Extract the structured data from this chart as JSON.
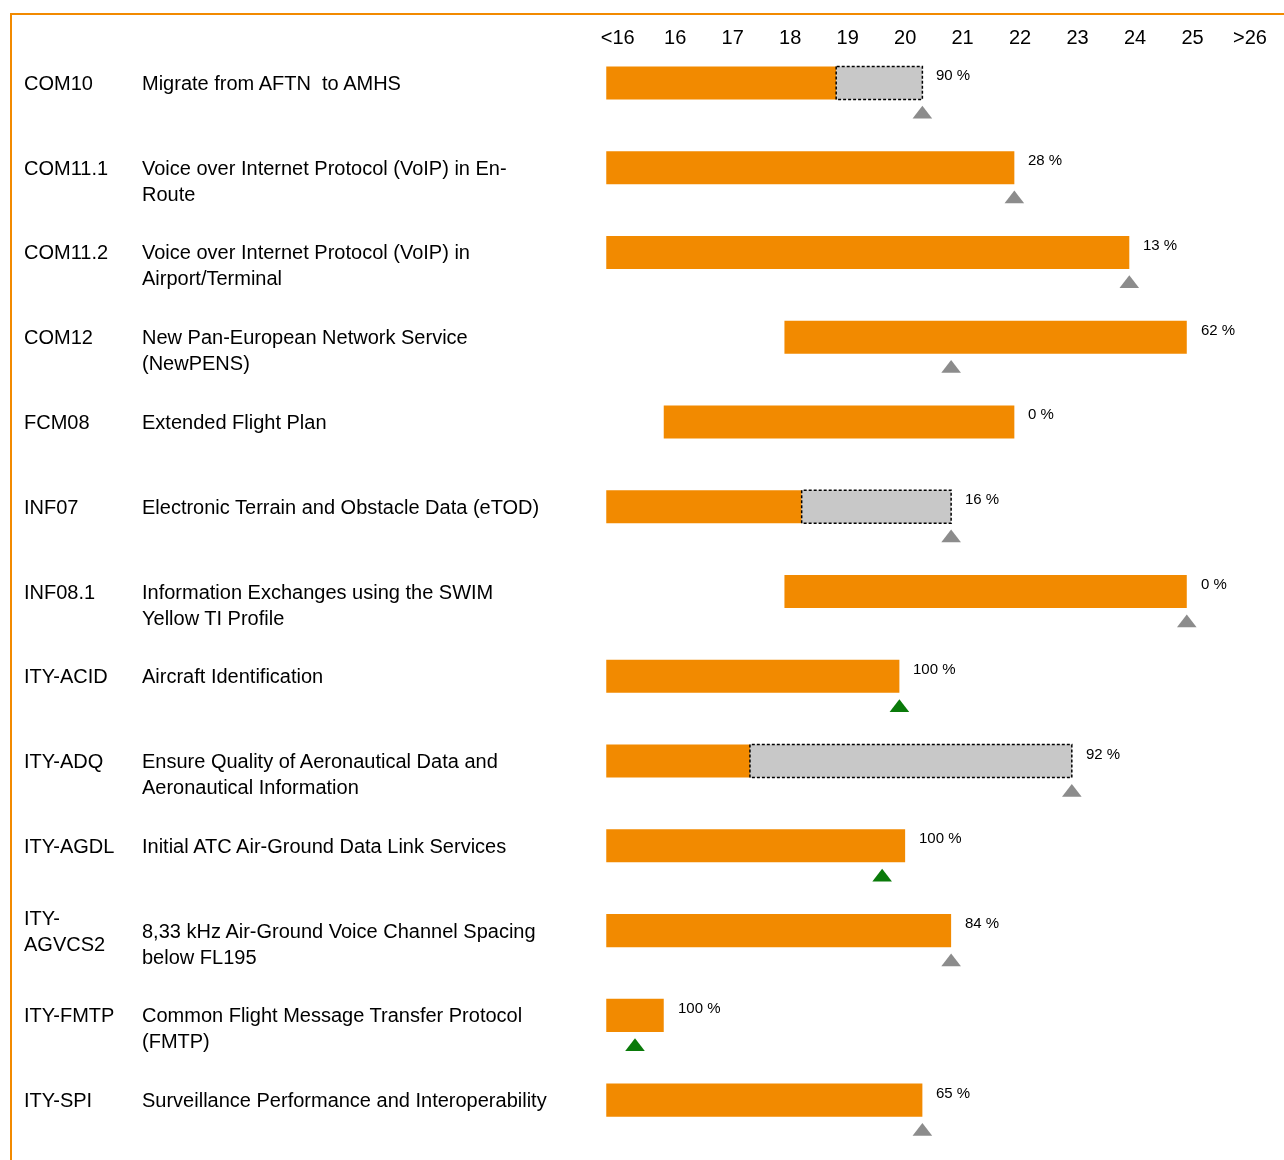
{
  "chart_data": {
    "type": "bar",
    "orientation": "horizontal",
    "categories": [
      "COM10",
      "COM11.1",
      "COM11.2",
      "COM12",
      "FCM08",
      "INF07",
      "INF08.1",
      "ITY-ACID",
      "ITY-ADQ",
      "ITY-AGDL",
      "ITY-AGVCS2",
      "ITY-FMTP",
      "ITY-SPI"
    ],
    "xlim": [
      4.6,
      26
    ],
    "xticks": [
      {
        "value": 15,
        "label": "<16"
      },
      16,
      17,
      18,
      19,
      20,
      21,
      22,
      23,
      24,
      25,
      {
        "value": 26,
        "label": ">26"
      }
    ],
    "series": [
      {
        "type": "bar",
        "color": "#f28a00",
        "base": [
          14.8,
          14.8,
          14.8,
          17.9,
          15.8,
          14.8,
          17.9,
          14.8,
          14.8,
          14.8,
          14.8,
          14.8,
          14.8
        ],
        "values": [
          4.0,
          7.1,
          9.1,
          7.0,
          6.1,
          3.4,
          7.0,
          5.1,
          2.5,
          5.2,
          6.0,
          1.0,
          5.5
        ]
      },
      {
        "type": "bar",
        "color": "#c8c8c8",
        "line_style": "dashed",
        "base": [
          18.8,
          null,
          null,
          null,
          null,
          18.2,
          null,
          null,
          17.3,
          null,
          null,
          null,
          null
        ],
        "values": [
          1.5,
          null,
          null,
          null,
          null,
          2.6,
          null,
          null,
          5.6,
          null,
          null,
          null,
          null
        ]
      },
      {
        "type": "scatter",
        "marker": "triangle",
        "colors": [
          "#8c8c8c",
          "#8c8c8c",
          "#8c8c8c",
          "#8c8c8c",
          "#8c8c8c",
          "#8c8c8c",
          "#8c8c8c",
          "#0a7a0a",
          "#8c8c8c",
          "#0a7a0a",
          "#8c8c8c",
          "#0a7a0a",
          "#8c8c8c"
        ],
        "values": [
          20.3,
          21.9,
          23.9,
          20.8,
          null,
          20.8,
          24.9,
          19.9,
          22.9,
          19.6,
          20.8,
          15.3,
          20.3
        ]
      }
    ],
    "annotations": [
      "Migrate from AFTN  to AMHS",
      "Voice over Internet Protocol (VoIP) in En-Route",
      "Voice over Internet Protocol (VoIP) in Airport/Terminal",
      "New Pan-European Network Service (NewPENS)",
      "Extended Flight Plan",
      "Electronic Terrain and Obstacle Data (eTOD)",
      "Information Exchanges using the SWIM Yellow TI Profile",
      "Aircraft Identification",
      "Ensure Quality of Aeronautical Data and Aeronautical Information",
      "Initial ATC Air-Ground Data Link Services",
      "8,33 kHz Air-Ground Voice Channel Spacing below FL195",
      "Common Flight Message Transfer Protocol (FMTP)",
      "Surveillance Performance and Interoperability",
      {
        "text": "90 %",
        "x": 20.3,
        "y": "COM10"
      },
      {
        "text": "28 %",
        "x": 21.9,
        "y": "COM11.1"
      },
      {
        "text": "13 %",
        "x": 23.9,
        "y": "COM11.2"
      },
      {
        "text": "62 %",
        "x": 24.9,
        "y": "COM12"
      },
      {
        "text": "0 %",
        "x": 21.9,
        "y": "FCM08"
      },
      {
        "text": "16 %",
        "x": 20.8,
        "y": "INF07"
      },
      {
        "text": "0 %",
        "x": 24.9,
        "y": "INF08.1"
      },
      {
        "text": "100 %",
        "x": 19.9,
        "y": "ITY-ACID"
      },
      {
        "text": "92 %",
        "x": 22.9,
        "y": "ITY-ADQ"
      },
      {
        "text": "100 %",
        "x": 20.0,
        "y": "ITY-AGDL"
      },
      {
        "text": "84 %",
        "x": 20.8,
        "y": "ITY-AGVCS2"
      },
      {
        "text": "100 %",
        "x": 15.8,
        "y": "ITY-FMTP"
      },
      {
        "text": "65 %",
        "x": 20.3,
        "y": "ITY-SPI"
      }
    ]
  }
}
